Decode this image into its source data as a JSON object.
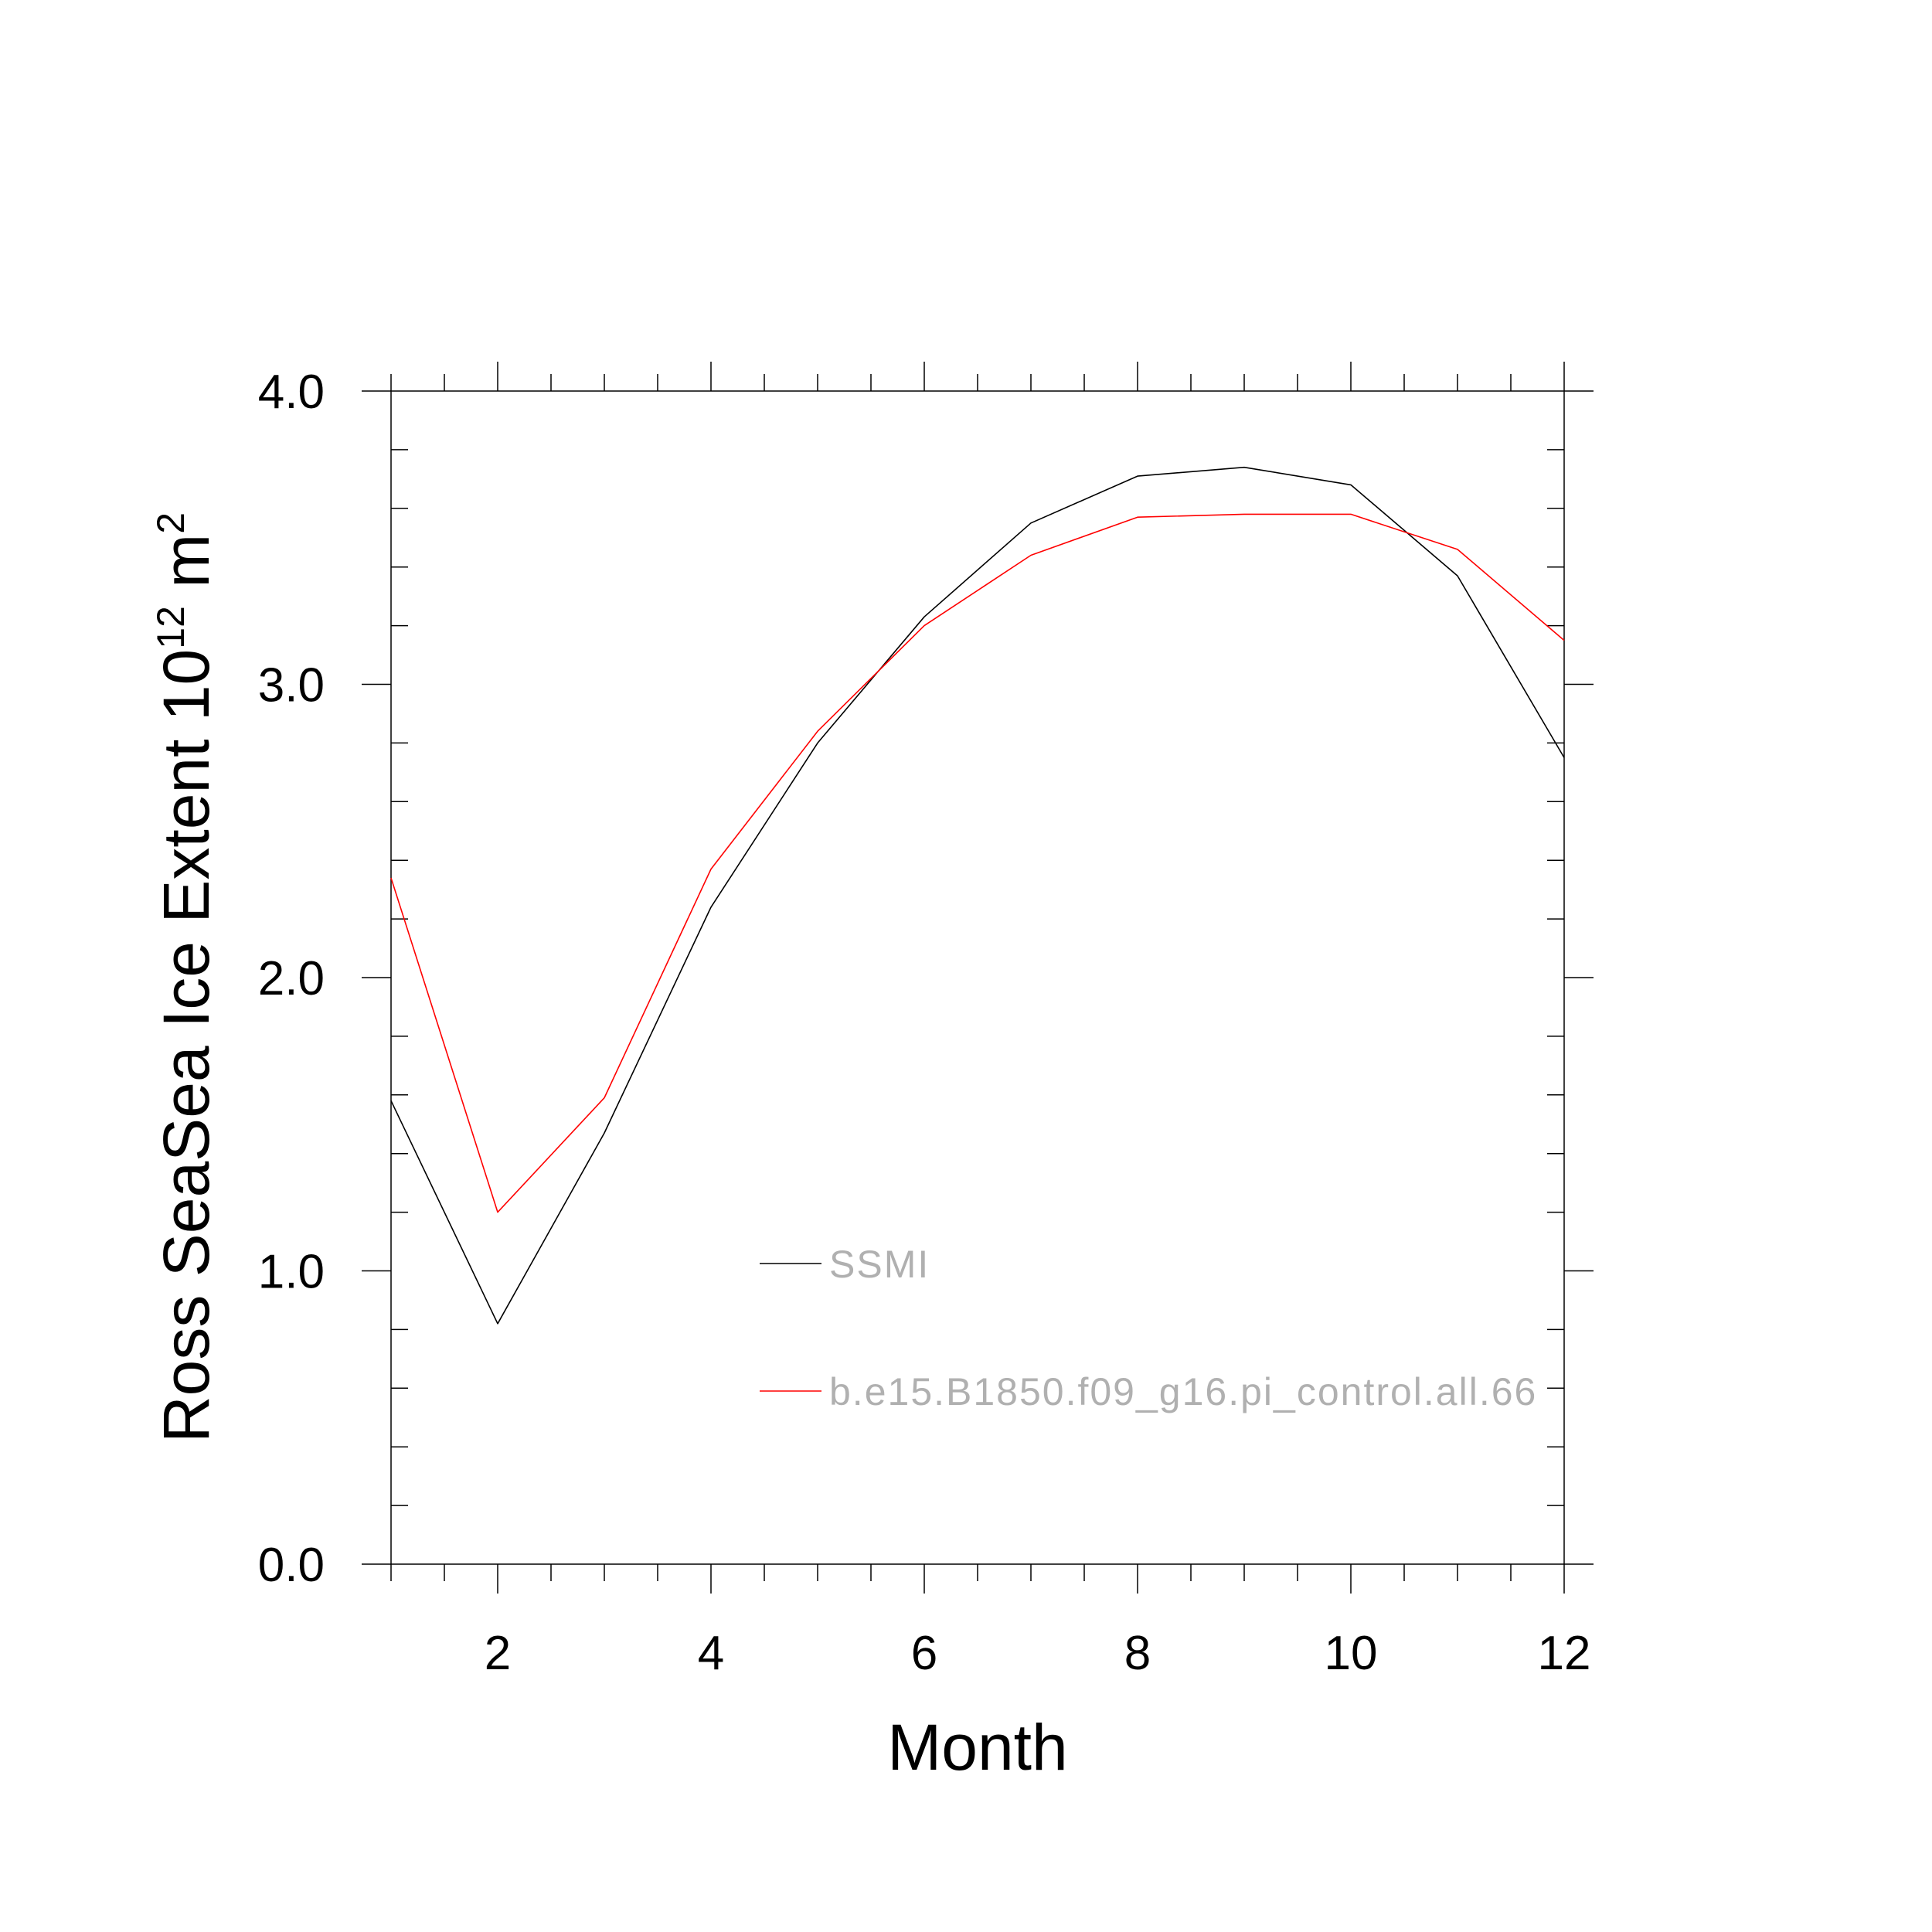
{
  "chart_data": {
    "type": "line",
    "xlabel": "Month",
    "ylabel": "Ross SeaSea Ice Extent 10",
    "ylabel_exp": "12",
    "ylabel_unit": " m",
    "ylabel_unit_exp": "2",
    "xlim": [
      1,
      12
    ],
    "ylim": [
      0.0,
      4.0
    ],
    "xticks": [
      "2",
      "4",
      "6",
      "8",
      "10",
      "12"
    ],
    "yticks": [
      "0.0",
      "1.0",
      "2.0",
      "3.0",
      "4.0"
    ],
    "grid": false,
    "legend_position": "center",
    "x": [
      1,
      2,
      3,
      4,
      5,
      6,
      7,
      8,
      9,
      10,
      11,
      12
    ],
    "series": [
      {
        "name": "SSMI",
        "color": "#000000",
        "values": [
          1.58,
          0.82,
          1.47,
          2.24,
          2.8,
          3.23,
          3.55,
          3.71,
          3.74,
          3.68,
          3.37,
          2.75
        ]
      },
      {
        "name": "b.e15.B1850.f09_g16.pi_control.all.66",
        "color": "#ff0000",
        "values": [
          2.34,
          1.2,
          1.59,
          2.37,
          2.84,
          3.2,
          3.44,
          3.57,
          3.58,
          3.58,
          3.46,
          3.15
        ]
      }
    ]
  }
}
